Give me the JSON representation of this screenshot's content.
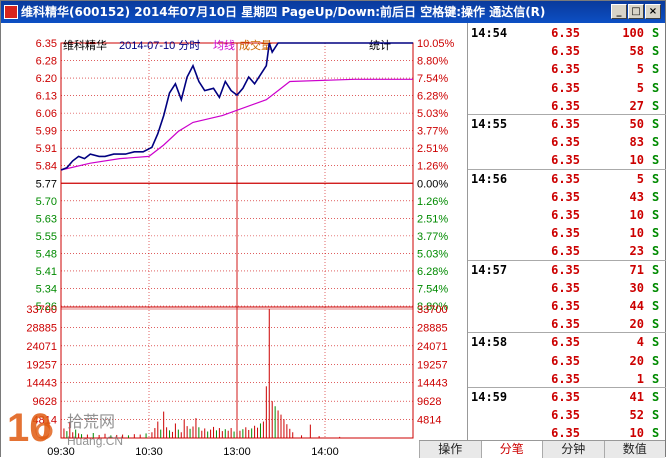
{
  "window": {
    "title": "维科精华(600152) 2014年07月10日 星期四 PageUp/Down:前后日 空格键:操作 通达信(R)",
    "buttons": {
      "minimize": "_",
      "maximize": "□",
      "close": "×"
    }
  },
  "chart": {
    "stock_name": "维科精华",
    "date_label": "2014-07-10 分时",
    "avg_label": "均线",
    "volume_label": "成交量",
    "stats_label": "统计",
    "colors": {
      "price_line": "#000080",
      "avg_line": "#cc00cc",
      "up": "#cc0000",
      "down": "#008a00",
      "grid": "#cc0000"
    }
  },
  "chart_data": {
    "type": "line",
    "price_ticks_left": [
      "6.35",
      "6.28",
      "6.20",
      "6.13",
      "6.06",
      "5.99",
      "5.91",
      "5.84",
      "5.77",
      "5.70",
      "5.63",
      "5.55",
      "5.48",
      "5.41",
      "5.34",
      "5.26"
    ],
    "pct_ticks_right": [
      "10.05%",
      "8.80%",
      "7.54%",
      "6.28%",
      "5.03%",
      "3.77%",
      "2.51%",
      "1.26%",
      "0.00%",
      "1.26%",
      "2.51%",
      "3.77%",
      "5.03%",
      "6.28%",
      "7.54%",
      "8.80%"
    ],
    "prev_close": 5.77,
    "ylim": [
      5.19,
      6.35
    ],
    "volume_ticks": [
      "33700",
      "28885",
      "24071",
      "19257",
      "14443",
      "9628",
      "4814"
    ],
    "volume_ylim": [
      0,
      33700
    ],
    "time_axis": [
      "09:30",
      "10:30",
      "13:00",
      "14:00"
    ],
    "price_series": [
      [
        0,
        5.79
      ],
      [
        4,
        5.8
      ],
      [
        8,
        5.83
      ],
      [
        12,
        5.85
      ],
      [
        16,
        5.84
      ],
      [
        20,
        5.86
      ],
      [
        26,
        5.85
      ],
      [
        30,
        5.85
      ],
      [
        36,
        5.86
      ],
      [
        44,
        5.86
      ],
      [
        50,
        5.87
      ],
      [
        56,
        5.87
      ],
      [
        62,
        5.89
      ],
      [
        66,
        5.95
      ],
      [
        70,
        6.03
      ],
      [
        74,
        6.13
      ],
      [
        78,
        6.17
      ],
      [
        82,
        6.1
      ],
      [
        86,
        6.2
      ],
      [
        90,
        6.25
      ],
      [
        94,
        6.18
      ],
      [
        98,
        6.14
      ],
      [
        104,
        6.15
      ],
      [
        108,
        6.11
      ],
      [
        112,
        6.18
      ],
      [
        116,
        6.14
      ],
      [
        120,
        6.12
      ],
      [
        124,
        6.15
      ],
      [
        128,
        6.2
      ],
      [
        132,
        6.17
      ],
      [
        136,
        6.21
      ],
      [
        140,
        6.25
      ],
      [
        142,
        6.35
      ],
      [
        144,
        6.31
      ],
      [
        148,
        6.35
      ],
      [
        160,
        6.35
      ],
      [
        190,
        6.35
      ],
      [
        240,
        6.35
      ]
    ],
    "avg_series": [
      [
        0,
        5.79
      ],
      [
        20,
        5.82
      ],
      [
        40,
        5.84
      ],
      [
        60,
        5.85
      ],
      [
        70,
        5.9
      ],
      [
        80,
        5.96
      ],
      [
        90,
        6.0
      ],
      [
        110,
        6.03
      ],
      [
        140,
        6.1
      ],
      [
        148,
        6.14
      ],
      [
        156,
        6.18
      ],
      [
        200,
        6.19
      ],
      [
        240,
        6.19
      ]
    ],
    "volume_series": [
      [
        0,
        9628,
        "up"
      ],
      [
        2,
        2500,
        "up"
      ],
      [
        4,
        1800,
        "down"
      ],
      [
        6,
        4200,
        "up"
      ],
      [
        8,
        1500,
        "up"
      ],
      [
        10,
        2200,
        "down"
      ],
      [
        12,
        1200,
        "up"
      ],
      [
        14,
        1000,
        "down"
      ],
      [
        18,
        900,
        "up"
      ],
      [
        22,
        1300,
        "down"
      ],
      [
        26,
        800,
        "up"
      ],
      [
        30,
        1100,
        "up"
      ],
      [
        34,
        700,
        "down"
      ],
      [
        38,
        800,
        "up"
      ],
      [
        42,
        900,
        "up"
      ],
      [
        46,
        700,
        "down"
      ],
      [
        50,
        1000,
        "up"
      ],
      [
        54,
        900,
        "up"
      ],
      [
        58,
        1200,
        "down"
      ],
      [
        62,
        1500,
        "up"
      ],
      [
        64,
        2600,
        "up"
      ],
      [
        66,
        4300,
        "up"
      ],
      [
        68,
        2200,
        "down"
      ],
      [
        70,
        6900,
        "up"
      ],
      [
        72,
        2800,
        "up"
      ],
      [
        74,
        2000,
        "down"
      ],
      [
        76,
        1600,
        "up"
      ],
      [
        78,
        3800,
        "up"
      ],
      [
        80,
        2200,
        "down"
      ],
      [
        82,
        1500,
        "up"
      ],
      [
        84,
        4800,
        "up"
      ],
      [
        86,
        3100,
        "up"
      ],
      [
        88,
        2400,
        "down"
      ],
      [
        90,
        3000,
        "up"
      ],
      [
        92,
        5200,
        "up"
      ],
      [
        94,
        2800,
        "down"
      ],
      [
        96,
        1900,
        "up"
      ],
      [
        98,
        2500,
        "up"
      ],
      [
        100,
        1700,
        "down"
      ],
      [
        102,
        2200,
        "up"
      ],
      [
        104,
        2900,
        "up"
      ],
      [
        106,
        2000,
        "down"
      ],
      [
        108,
        2600,
        "up"
      ],
      [
        110,
        1800,
        "up"
      ],
      [
        112,
        2300,
        "down"
      ],
      [
        114,
        1900,
        "up"
      ],
      [
        116,
        2600,
        "up"
      ],
      [
        118,
        1700,
        "down"
      ],
      [
        120,
        1500,
        "up"
      ],
      [
        122,
        1900,
        "up"
      ],
      [
        124,
        2300,
        "down"
      ],
      [
        126,
        2800,
        "up"
      ],
      [
        128,
        2100,
        "up"
      ],
      [
        130,
        2500,
        "down"
      ],
      [
        132,
        3200,
        "up"
      ],
      [
        134,
        2700,
        "up"
      ],
      [
        136,
        3800,
        "down"
      ],
      [
        138,
        4300,
        "up"
      ],
      [
        140,
        13500,
        "up"
      ],
      [
        142,
        33700,
        "up"
      ],
      [
        144,
        9628,
        "up"
      ],
      [
        146,
        8300,
        "down"
      ],
      [
        148,
        7200,
        "up"
      ],
      [
        150,
        6100,
        "up"
      ],
      [
        152,
        4900,
        "up"
      ],
      [
        154,
        3600,
        "up"
      ],
      [
        156,
        2400,
        "up"
      ],
      [
        158,
        1500,
        "up"
      ],
      [
        164,
        700,
        "up"
      ],
      [
        170,
        3500,
        "up"
      ],
      [
        176,
        500,
        "up"
      ],
      [
        190,
        300,
        "up"
      ]
    ]
  },
  "ticks_panel": {
    "groups": [
      {
        "time": "14:54",
        "rows": [
          [
            "6.35",
            "100",
            "S"
          ],
          [
            "6.35",
            "58",
            "S"
          ],
          [
            "6.35",
            "5",
            "S"
          ],
          [
            "6.35",
            "5",
            "S"
          ],
          [
            "6.35",
            "27",
            "S"
          ]
        ]
      },
      {
        "time": "14:55",
        "rows": [
          [
            "6.35",
            "50",
            "S"
          ],
          [
            "6.35",
            "83",
            "S"
          ],
          [
            "6.35",
            "10",
            "S"
          ]
        ]
      },
      {
        "time": "14:56",
        "rows": [
          [
            "6.35",
            "5",
            "S"
          ],
          [
            "6.35",
            "43",
            "S"
          ],
          [
            "6.35",
            "10",
            "S"
          ],
          [
            "6.35",
            "10",
            "S"
          ],
          [
            "6.35",
            "23",
            "S"
          ]
        ]
      },
      {
        "time": "14:57",
        "rows": [
          [
            "6.35",
            "71",
            "S"
          ],
          [
            "6.35",
            "30",
            "S"
          ],
          [
            "6.35",
            "44",
            "S"
          ],
          [
            "6.35",
            "20",
            "S"
          ]
        ]
      },
      {
        "time": "14:58",
        "rows": [
          [
            "6.35",
            "4",
            "S"
          ],
          [
            "6.35",
            "20",
            "S"
          ],
          [
            "6.35",
            "1",
            "S"
          ]
        ]
      },
      {
        "time": "14:59",
        "rows": [
          [
            "6.35",
            "41",
            "S"
          ],
          [
            "6.35",
            "52",
            "S"
          ],
          [
            "6.35",
            "10",
            "S"
          ]
        ]
      }
    ]
  },
  "tabs": [
    "操作",
    "分笔",
    "分钟",
    "数值"
  ],
  "active_tab": 1,
  "watermark": {
    "big": "10",
    "cn": "拾荒网",
    "url": "Huang.CN"
  }
}
